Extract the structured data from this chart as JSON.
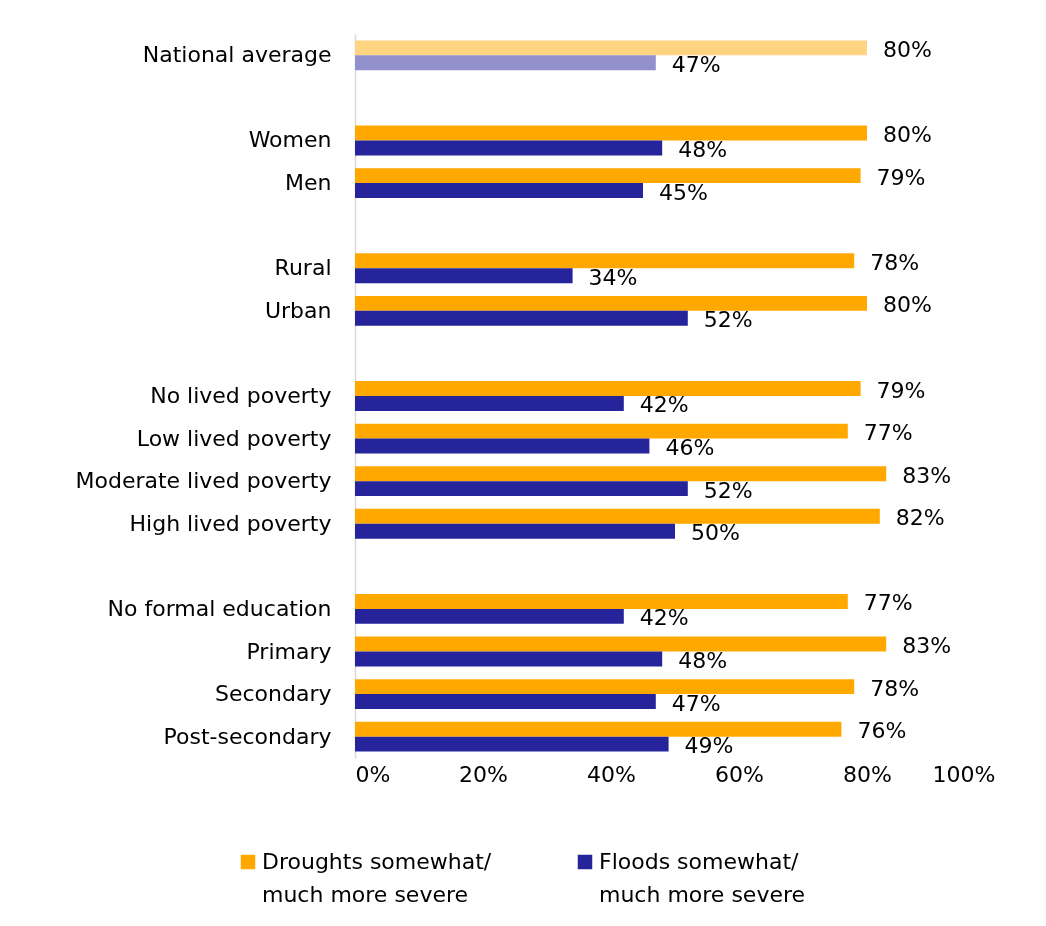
{
  "chart_data": {
    "type": "bar",
    "orientation": "horizontal",
    "categories": [
      "National average",
      null,
      "Women",
      "Men",
      null,
      "Rural",
      "Urban",
      null,
      "No lived poverty",
      "Low lived poverty",
      "Moderate lived poverty",
      "High lived poverty",
      null,
      "No formal education",
      "Primary",
      "Secondary",
      "Post-secondary"
    ],
    "series": [
      {
        "name": "Droughts somewhat/ much more severe",
        "color": "#ffa800",
        "colors": [
          "#ffd480",
          null,
          "#ffa800",
          "#ffa800",
          null,
          "#ffa800",
          "#ffa800",
          null,
          "#ffa800",
          "#ffa800",
          "#ffa800",
          "#ffa800",
          null,
          "#ffa800",
          "#ffa800",
          "#ffa800",
          "#ffa800"
        ],
        "values": [
          80,
          null,
          80,
          79,
          null,
          78,
          80,
          null,
          79,
          77,
          83,
          82,
          null,
          77,
          83,
          78,
          76
        ],
        "value_labels": [
          "80%",
          null,
          "80%",
          "79%",
          null,
          "78%",
          "80%",
          null,
          "79%",
          "77%",
          "83%",
          "82%",
          null,
          "77%",
          "83%",
          "78%",
          "76%"
        ]
      },
      {
        "name": "Floods somewhat/ much more severe",
        "color": "#26249b",
        "colors": [
          "#9291cd",
          null,
          "#26249b",
          "#26249b",
          null,
          "#26249b",
          "#26249b",
          null,
          "#26249b",
          "#26249b",
          "#26249b",
          "#26249b",
          null,
          "#26249b",
          "#26249b",
          "#26249b",
          "#26249b"
        ],
        "values": [
          47,
          null,
          48,
          45,
          null,
          34,
          52,
          null,
          42,
          46,
          52,
          50,
          null,
          42,
          48,
          47,
          49
        ],
        "value_labels": [
          "47%",
          null,
          "48%",
          "45%",
          null,
          "34%",
          "52%",
          null,
          "42%",
          "46%",
          "52%",
          "50%",
          null,
          "42%",
          "48%",
          "47%",
          "49%"
        ]
      }
    ],
    "xlim": [
      0,
      100
    ],
    "xticks": [
      {
        "value": 0,
        "label": "0%"
      },
      {
        "value": 20,
        "label": "20%"
      },
      {
        "value": 40,
        "label": "40%"
      },
      {
        "value": 60,
        "label": "60%"
      },
      {
        "value": 80,
        "label": "80%"
      },
      {
        "value": 100,
        "label": "100%"
      }
    ],
    "legend": "bottom"
  }
}
